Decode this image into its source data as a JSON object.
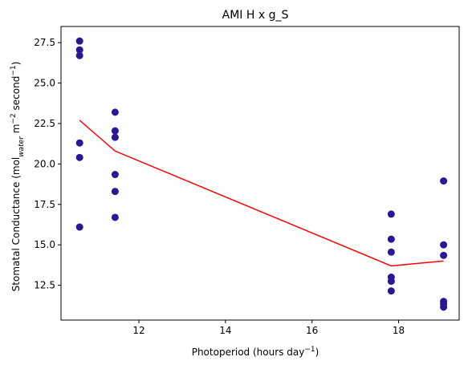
{
  "chart_data": {
    "type": "scatter",
    "title": "AMI H x g_S",
    "xlabel": {
      "main": "Photoperiod (hours day",
      "sup": "−1",
      "tail": ")"
    },
    "ylabel": {
      "pre": "Stomatal Conductance (mol",
      "sub": "water",
      "mid": " m",
      "sup1": "−2",
      "mid2": " second",
      "sup2": "−1",
      "tail": ")"
    },
    "xlim": [
      10.2,
      19.4
    ],
    "ylim": [
      10.35,
      28.5
    ],
    "xticks": [
      12,
      14,
      16,
      18
    ],
    "xtick_labels": [
      "12",
      "14",
      "16",
      "18"
    ],
    "yticks": [
      12.5,
      15.0,
      17.5,
      20.0,
      22.5,
      25.0,
      27.5
    ],
    "ytick_labels": [
      "12.5",
      "15.0",
      "17.5",
      "20.0",
      "22.5",
      "25.0",
      "27.5"
    ],
    "grid": false,
    "scatter_color": "#2a1696",
    "line_color": "#ff0000",
    "points": [
      {
        "x": 10.63,
        "y": 27.6
      },
      {
        "x": 10.63,
        "y": 27.05
      },
      {
        "x": 10.63,
        "y": 26.7
      },
      {
        "x": 10.63,
        "y": 21.3
      },
      {
        "x": 10.63,
        "y": 20.4
      },
      {
        "x": 10.63,
        "y": 16.1
      },
      {
        "x": 11.45,
        "y": 23.2
      },
      {
        "x": 11.45,
        "y": 22.05
      },
      {
        "x": 11.45,
        "y": 21.65
      },
      {
        "x": 11.45,
        "y": 19.35
      },
      {
        "x": 11.45,
        "y": 18.3
      },
      {
        "x": 11.45,
        "y": 16.7
      },
      {
        "x": 17.83,
        "y": 16.9
      },
      {
        "x": 17.83,
        "y": 15.35
      },
      {
        "x": 17.83,
        "y": 14.55
      },
      {
        "x": 17.83,
        "y": 13.0
      },
      {
        "x": 17.83,
        "y": 12.75
      },
      {
        "x": 17.83,
        "y": 12.15
      },
      {
        "x": 19.04,
        "y": 18.95
      },
      {
        "x": 19.04,
        "y": 15.0
      },
      {
        "x": 19.04,
        "y": 14.35
      },
      {
        "x": 19.04,
        "y": 11.5
      },
      {
        "x": 19.04,
        "y": 11.35
      },
      {
        "x": 19.04,
        "y": 11.15
      }
    ],
    "line": {
      "x": [
        10.63,
        11.45,
        17.83,
        19.04
      ],
      "y": [
        22.7,
        20.8,
        13.7,
        14.0
      ]
    }
  }
}
